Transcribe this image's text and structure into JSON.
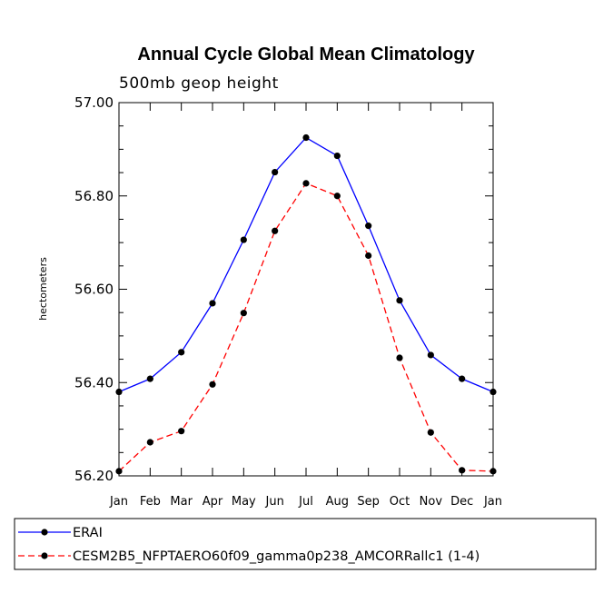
{
  "chart_data": {
    "type": "line",
    "title": "Annual Cycle Global Mean Climatology",
    "subtitle": "500mb geop height",
    "xlabel": "",
    "ylabel": "hectometers",
    "categories": [
      "Jan",
      "Feb",
      "Mar",
      "Apr",
      "May",
      "Jun",
      "Jul",
      "Aug",
      "Sep",
      "Oct",
      "Nov",
      "Dec",
      "Jan"
    ],
    "ylim": [
      56.2,
      57.0
    ],
    "yticks": [
      56.2,
      56.4,
      56.6,
      56.8,
      57.0
    ],
    "ytick_labels": [
      "56.20",
      "56.40",
      "56.60",
      "56.80",
      "57.00"
    ],
    "grid": false,
    "legend_position": "bottom",
    "series": [
      {
        "name": "ERAI",
        "color": "#0000ff",
        "dash": "solid",
        "values": [
          56.38,
          56.408,
          56.465,
          56.57,
          56.706,
          56.851,
          56.925,
          56.886,
          56.736,
          56.576,
          56.459,
          56.408,
          56.38
        ]
      },
      {
        "name": "CESM2B5_NFPTAERO60f09_gamma0p238_AMCORRallc1 (1-4)",
        "color": "#ff0000",
        "dash": "dashed",
        "values": [
          56.21,
          56.272,
          56.296,
          56.396,
          56.549,
          56.725,
          56.827,
          56.8,
          56.672,
          56.453,
          56.293,
          56.212,
          56.21
        ]
      }
    ]
  }
}
